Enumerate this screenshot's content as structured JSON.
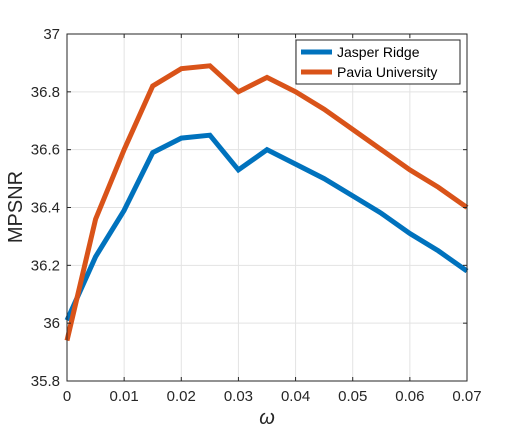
{
  "chart_data": {
    "type": "line",
    "xlabel": "ω",
    "ylabel": "MPSNR",
    "xlim": [
      0,
      0.07
    ],
    "ylim": [
      35.8,
      37
    ],
    "xticks": [
      "0",
      "0.01",
      "0.02",
      "0.03",
      "0.04",
      "0.05",
      "0.06",
      "0.07"
    ],
    "yticks": [
      "35.8",
      "36",
      "36.2",
      "36.4",
      "36.6",
      "36.8",
      "37"
    ],
    "grid": true,
    "legend_position": "top-right",
    "x": [
      0,
      0.005,
      0.01,
      0.015,
      0.02,
      0.025,
      0.03,
      0.035,
      0.04,
      0.045,
      0.05,
      0.055,
      0.06,
      0.065,
      0.07
    ],
    "series": [
      {
        "name": "Jasper Ridge",
        "color": "#0072BD",
        "values": [
          36.01,
          36.23,
          36.39,
          36.59,
          36.64,
          36.65,
          36.53,
          36.6,
          36.55,
          36.5,
          36.44,
          36.38,
          36.31,
          36.25,
          36.18
        ]
      },
      {
        "name": "Pavia University",
        "color": "#D95319",
        "values": [
          35.94,
          36.36,
          36.6,
          36.82,
          36.88,
          36.89,
          36.8,
          36.85,
          36.8,
          36.74,
          36.67,
          36.6,
          36.53,
          36.47,
          36.4
        ]
      }
    ]
  }
}
